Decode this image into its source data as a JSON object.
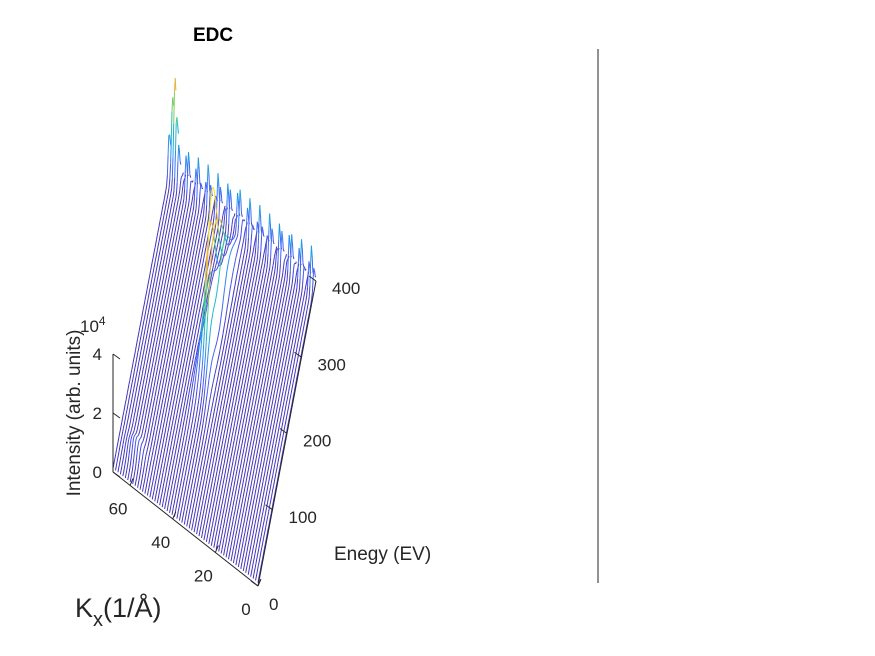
{
  "chart_data": {
    "type": "surface-3d",
    "title": "EDC",
    "xlabel": "Enegy (EV)",
    "ylabel_main": "K",
    "ylabel_sub": "x",
    "ylabel_rest": "(1/Å)",
    "zlabel": "Intensity (arb. units)",
    "z_exponent_base": "10",
    "z_exponent_power": "4",
    "energy_ticks": [
      "0",
      "100",
      "200",
      "300",
      "400"
    ],
    "k_ticks": [
      "0",
      "20",
      "40",
      "60"
    ],
    "intensity_ticks": [
      "0",
      "2",
      "4"
    ],
    "energy_range": [
      0,
      400
    ],
    "k_range": [
      0,
      68
    ],
    "intensity_range": [
      0,
      40000
    ],
    "colormap": [
      "#3e26a8",
      "#4a5bf5",
      "#2c8ef0",
      "#13b9c7",
      "#49d17d",
      "#c3c23a",
      "#f9a93e",
      "#f0e026"
    ],
    "grid": false
  },
  "colorbar_axis": {
    "visible_line_color": "#262626"
  }
}
